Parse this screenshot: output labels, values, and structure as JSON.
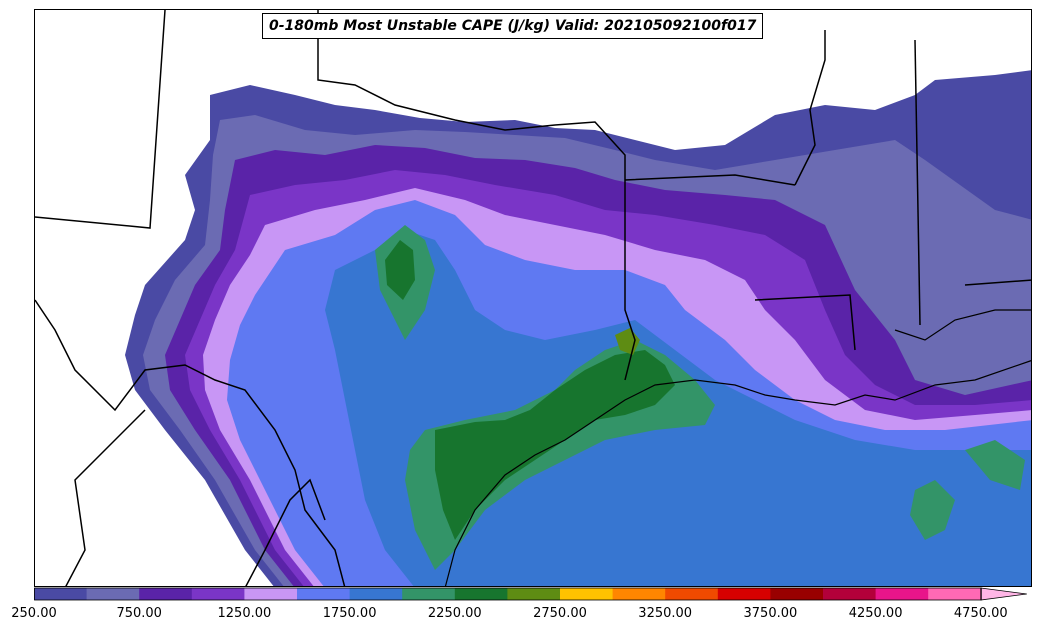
{
  "title": "0-180mb Most Unstable CAPE (J/kg) Valid: 202105092100f017",
  "colorbar": {
    "colors": [
      "#4a4aa4",
      "#6b6bb3",
      "#5a23a8",
      "#7a35c7",
      "#c896f5",
      "#5f79f2",
      "#3776d1",
      "#339468",
      "#17752e",
      "#5e8c13",
      "#ffc200",
      "#ff8600",
      "#f04a00",
      "#d60000",
      "#990000",
      "#b3003a",
      "#e8158a",
      "#ff69b4",
      "#ffb6e6"
    ],
    "ticks": [
      "250.00",
      "750.00",
      "1250.00",
      "1750.00",
      "2250.00",
      "2750.00",
      "3250.00",
      "3750.00",
      "4250.00",
      "4750.00"
    ],
    "extend": "max"
  }
}
